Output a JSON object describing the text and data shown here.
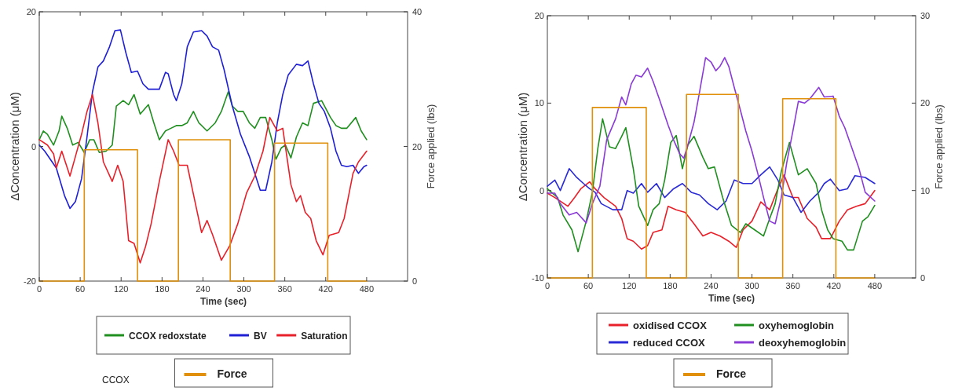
{
  "chart_data": [
    {
      "type": "line",
      "xlabel": "Time (sec)",
      "ylabel": "ΔConcentration (μM)",
      "y2label": "Force applied (lbs)",
      "xlim": [
        0,
        540
      ],
      "xticks": [
        0,
        60,
        120,
        180,
        240,
        300,
        360,
        420,
        480
      ],
      "ylim": [
        -20,
        20
      ],
      "yticks": [
        -20,
        0,
        20
      ],
      "y2lim": [
        0,
        40
      ],
      "y2ticks": [
        0,
        20,
        40
      ],
      "grid": false,
      "legend": "bottom",
      "annotations": [
        "CCOX"
      ],
      "series": [
        {
          "name": "CCOX redoxstate",
          "color": "#1f8f1f",
          "x": [
            0,
            6,
            12,
            21,
            29,
            33,
            41,
            49,
            57,
            66,
            74,
            80,
            88,
            98,
            107,
            113,
            123,
            131,
            139,
            148,
            160,
            168,
            176,
            185,
            193,
            201,
            209,
            217,
            226,
            234,
            246,
            258,
            267,
            277,
            283,
            291,
            299,
            308,
            316,
            324,
            332,
            341,
            347,
            355,
            361,
            369,
            377,
            386,
            394,
            402,
            414,
            427,
            435,
            443,
            451,
            464,
            472,
            480
          ],
          "values": [
            1,
            2.3,
            1.8,
            0.2,
            2.3,
            4.5,
            2.7,
            0.2,
            0.6,
            -0.9,
            1,
            1,
            -0.9,
            -0.7,
            0.2,
            6,
            6.8,
            6.2,
            7.7,
            4.8,
            6.2,
            3.5,
            1,
            2.3,
            2.7,
            3.1,
            3.1,
            3.5,
            5.2,
            3.5,
            2.3,
            3.5,
            5.2,
            8.1,
            6,
            5.2,
            5.2,
            3.5,
            2.7,
            4.3,
            4.3,
            1,
            -1.9,
            -0.2,
            0.2,
            -1.7,
            1.4,
            3.5,
            3.1,
            6.4,
            6.8,
            4.3,
            3.1,
            2.7,
            2.7,
            4.3,
            2.3,
            1
          ]
        },
        {
          "name": "BV",
          "color": "#1f1fd6",
          "x": [
            0,
            8,
            25,
            37,
            45,
            53,
            62,
            70,
            78,
            86,
            94,
            103,
            111,
            119,
            127,
            135,
            144,
            152,
            160,
            168,
            176,
            185,
            189,
            197,
            201,
            209,
            217,
            226,
            238,
            246,
            254,
            263,
            271,
            283,
            295,
            308,
            316,
            324,
            332,
            341,
            349,
            357,
            365,
            377,
            386,
            394,
            402,
            410,
            418,
            427,
            435,
            443,
            451,
            460,
            468,
            476,
            480
          ],
          "values": [
            0.2,
            -0.7,
            -3.2,
            -7.3,
            -9.2,
            -8.2,
            -4.8,
            1.4,
            8.1,
            11.8,
            12.7,
            14.8,
            17.2,
            17.3,
            13.9,
            11,
            11.2,
            9.3,
            8.5,
            8.5,
            8.5,
            11,
            10.8,
            7.7,
            6.8,
            9.3,
            14.8,
            17,
            17.2,
            16.4,
            14.8,
            14.3,
            11.4,
            6,
            1.8,
            -1.5,
            -4,
            -6.5,
            -6.5,
            -2.3,
            3.5,
            7.7,
            10.6,
            12.2,
            12,
            12.7,
            9.3,
            6.4,
            5.2,
            2.7,
            -0.7,
            -2.8,
            -3,
            -2.8,
            -4,
            -3,
            -2.8
          ]
        },
        {
          "name": "Saturation",
          "color": "#e8202a",
          "x": [
            0,
            12,
            21,
            25,
            33,
            45,
            53,
            62,
            70,
            78,
            86,
            94,
            107,
            115,
            123,
            131,
            139,
            148,
            156,
            164,
            176,
            189,
            197,
            205,
            217,
            230,
            238,
            246,
            254,
            267,
            279,
            291,
            304,
            316,
            328,
            338,
            349,
            357,
            369,
            377,
            383,
            390,
            398,
            406,
            416,
            425,
            439,
            447,
            460,
            468,
            480
          ],
          "values": [
            1,
            0.2,
            -1.1,
            -3.2,
            -0.7,
            -4.4,
            -1.5,
            1.8,
            5.2,
            7.7,
            3.5,
            -2.3,
            -5.2,
            -2.8,
            -5.2,
            -14,
            -14.4,
            -17.3,
            -14.8,
            -11.5,
            -5.2,
            1,
            -0.7,
            -2.8,
            -2.8,
            -9,
            -12.8,
            -11,
            -13.1,
            -16.9,
            -14.8,
            -11.5,
            -6.9,
            -4.4,
            -0.7,
            4.3,
            2.3,
            2.7,
            -5.7,
            -8.2,
            -7.3,
            -9.8,
            -10.7,
            -14,
            -16.1,
            -13.2,
            -12.8,
            -10.7,
            -4,
            -2.3,
            -0.7
          ]
        },
        {
          "name": "Force",
          "type": "step",
          "axis": "y2",
          "color": "#e0900a",
          "x": [
            0,
            66,
            144,
            204,
            280,
            345,
            423,
            480
          ],
          "values": [
            0,
            19.5,
            0,
            21,
            0,
            20.5,
            0,
            0
          ]
        }
      ]
    },
    {
      "type": "line",
      "xlabel": "Time (sec)",
      "ylabel": "ΔConcentration (μM)",
      "y2label": "Force applied (lbs)",
      "xlim": [
        0,
        540
      ],
      "xticks": [
        0,
        60,
        120,
        180,
        240,
        300,
        360,
        420,
        480
      ],
      "ylim": [
        -10,
        20
      ],
      "yticks": [
        -10,
        0,
        10,
        20
      ],
      "y2lim": [
        0,
        30
      ],
      "y2ticks": [
        0,
        10,
        20,
        30
      ],
      "grid": false,
      "legend": "bottom",
      "series": [
        {
          "name": "oxidised CCOX",
          "color": "#e8202a",
          "x": [
            0,
            11,
            30,
            40,
            49,
            62,
            70,
            83,
            100,
            109,
            117,
            126,
            138,
            147,
            155,
            168,
            177,
            189,
            202,
            215,
            228,
            240,
            253,
            266,
            277,
            287,
            300,
            313,
            326,
            338,
            347,
            360,
            368,
            381,
            394,
            402,
            415,
            428,
            440,
            453,
            466,
            480
          ],
          "values": [
            -0.3,
            -0.8,
            -1.8,
            -0.8,
            0.2,
            1,
            0.2,
            -0.8,
            -1.8,
            -3.2,
            -5.5,
            -5.8,
            -6.7,
            -6.3,
            -4.8,
            -4.5,
            -1.8,
            -2.2,
            -2.5,
            -3.8,
            -5.2,
            -4.8,
            -5.2,
            -5.8,
            -6.5,
            -4.5,
            -3.5,
            -1.3,
            -2.2,
            0.2,
            1.8,
            -0.8,
            -0.8,
            -3.2,
            -4.2,
            -5.5,
            -5.5,
            -3.5,
            -2.2,
            -1.8,
            -1.5,
            0
          ]
        },
        {
          "name": "reduced CCOX",
          "color": "#2a2ad6",
          "x": [
            0,
            11,
            19,
            32,
            43,
            53,
            62,
            70,
            79,
            96,
            109,
            117,
            126,
            138,
            147,
            160,
            172,
            185,
            198,
            211,
            223,
            236,
            249,
            262,
            274,
            287,
            300,
            313,
            326,
            338,
            347,
            360,
            372,
            385,
            398,
            406,
            415,
            428,
            440,
            451,
            466,
            480
          ],
          "values": [
            0.5,
            1.2,
            0,
            2.5,
            1.5,
            0.8,
            0.2,
            -0.2,
            -1.5,
            -2.2,
            -2.2,
            0,
            -0.3,
            0.8,
            -0.2,
            0.8,
            -0.8,
            0.2,
            0.8,
            -0.2,
            -0.5,
            -1.5,
            -2.2,
            -1.2,
            1.2,
            0.8,
            0.8,
            1.8,
            2.7,
            1.2,
            -0.5,
            -0.8,
            -2.5,
            -1.2,
            -0.2,
            0.8,
            1.3,
            0,
            0.2,
            1.7,
            1.5,
            0.8
          ]
        },
        {
          "name": "oxyhemoglobin",
          "color": "#1f8f1f",
          "x": [
            0,
            15,
            23,
            36,
            45,
            57,
            66,
            74,
            81,
            91,
            100,
            109,
            115,
            126,
            134,
            147,
            155,
            164,
            172,
            181,
            189,
            198,
            206,
            215,
            228,
            236,
            245,
            257,
            270,
            283,
            291,
            304,
            317,
            326,
            334,
            343,
            355,
            368,
            381,
            394,
            402,
            411,
            419,
            432,
            440,
            449,
            462,
            470,
            480
          ],
          "values": [
            0.2,
            -0.8,
            -2.8,
            -4.5,
            -7,
            -3.5,
            -0.2,
            4.8,
            8.2,
            5,
            4.8,
            6.2,
            7.2,
            2.5,
            -1.8,
            -4,
            -2.2,
            -1.5,
            1.2,
            5.5,
            6.3,
            2.5,
            5.2,
            6.2,
            3.8,
            2.5,
            2.7,
            -0.8,
            -4,
            -4.8,
            -3.8,
            -4.5,
            -5.2,
            -3.2,
            -1.5,
            2.2,
            5.5,
            1.8,
            2.5,
            0.8,
            -2.2,
            -4.5,
            -5.5,
            -5.8,
            -6.8,
            -6.8,
            -3.5,
            -3,
            -1.7
          ]
        },
        {
          "name": "deoxyhemoglobin",
          "color": "#8a3ad6",
          "x": [
            0,
            11,
            19,
            32,
            43,
            57,
            66,
            77,
            87,
            100,
            109,
            115,
            123,
            130,
            138,
            147,
            155,
            164,
            177,
            185,
            194,
            200,
            206,
            215,
            223,
            232,
            240,
            247,
            253,
            260,
            266,
            274,
            283,
            291,
            300,
            309,
            317,
            326,
            334,
            343,
            351,
            360,
            368,
            377,
            385,
            398,
            406,
            419,
            428,
            436,
            445,
            457,
            466,
            480
          ],
          "values": [
            -0.3,
            -0.3,
            -1.5,
            -2.8,
            -2.5,
            -3.7,
            -1.5,
            0.5,
            5.8,
            8.2,
            10.7,
            9.8,
            12.2,
            13.2,
            13,
            14,
            12.5,
            10.5,
            7.5,
            5.8,
            4.2,
            3.7,
            5.2,
            7.8,
            11.2,
            15.2,
            14.7,
            13.7,
            14.2,
            15.2,
            14.2,
            11.8,
            9.2,
            6.8,
            4.5,
            1.8,
            -0.8,
            -3.5,
            -3.8,
            -0.8,
            3.2,
            6.8,
            10.2,
            10,
            10.5,
            11.8,
            10.7,
            10.8,
            8.5,
            7.2,
            5.2,
            2.5,
            -0.2,
            -1.2
          ]
        },
        {
          "name": "Force",
          "type": "step",
          "axis": "y2",
          "color": "#e0900a",
          "x": [
            0,
            66,
            145,
            204,
            280,
            345,
            423,
            480
          ],
          "values": [
            0,
            19.5,
            0,
            21,
            0,
            20.5,
            0,
            0
          ]
        }
      ]
    }
  ]
}
